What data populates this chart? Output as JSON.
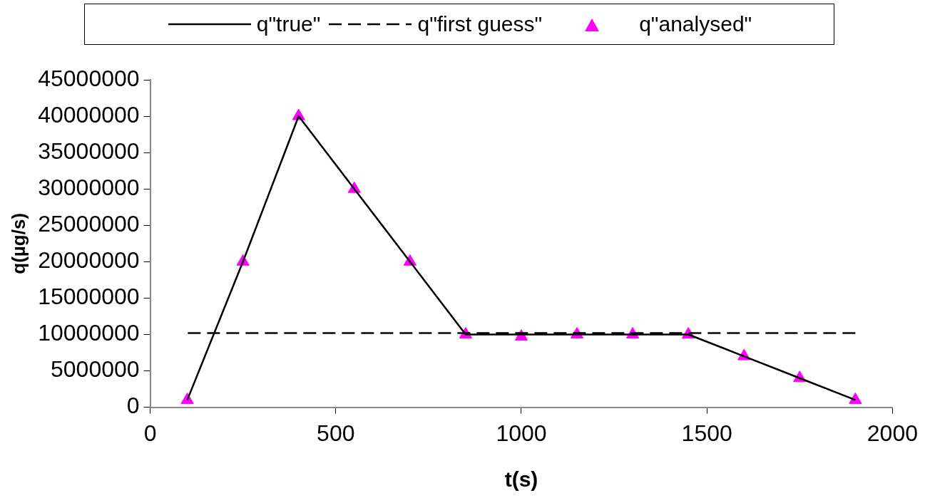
{
  "chart_data": {
    "type": "line",
    "xlabel": "t(s)",
    "ylabel": "q(µg/s)",
    "xlim": [
      0,
      2000
    ],
    "xticks": [
      0,
      500,
      1000,
      1500,
      2000
    ],
    "ylim": [
      0,
      45000000
    ],
    "yticks": [
      0,
      5000000,
      10000000,
      15000000,
      20000000,
      25000000,
      30000000,
      35000000,
      40000000,
      45000000
    ],
    "grid": false,
    "legend": "top",
    "series": [
      {
        "name": "q\"true\"",
        "type": "line",
        "color": "#000000",
        "line_style": "solid",
        "marker": "none",
        "x": [
          100,
          250,
          400,
          550,
          700,
          850,
          1000,
          1150,
          1300,
          1450,
          1600,
          1750,
          1900
        ],
        "values": [
          1000000,
          20000000,
          40000000,
          30000000,
          20000000,
          10000000,
          10000000,
          10000000,
          10000000,
          10000000,
          7000000,
          4000000,
          1000000
        ]
      },
      {
        "name": "q\"first guess\"",
        "type": "line",
        "color": "#000000",
        "line_style": "dashed",
        "marker": "none",
        "x": [
          100,
          1900
        ],
        "values": [
          10200000,
          10200000
        ]
      },
      {
        "name": "q\"analysed\"",
        "type": "scatter",
        "color": "#ff00ff",
        "marker": "triangle",
        "x": [
          100,
          250,
          400,
          550,
          700,
          850,
          1000,
          1150,
          1300,
          1450,
          1600,
          1750,
          1900
        ],
        "values": [
          1000000,
          20000000,
          40000000,
          30000000,
          20000000,
          10000000,
          9700000,
          10000000,
          10000000,
          10000000,
          7000000,
          4000000,
          1000000
        ]
      }
    ]
  }
}
